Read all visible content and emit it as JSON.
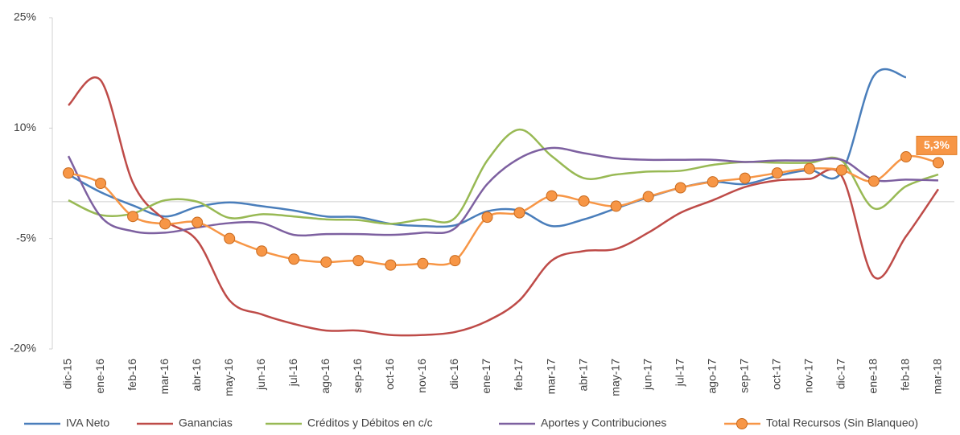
{
  "chart_data": {
    "type": "line",
    "categories": [
      "dic-15",
      "ene-16",
      "feb-16",
      "mar-16",
      "abr-16",
      "may-16",
      "jun-16",
      "jul-16",
      "ago-16",
      "sep-16",
      "oct-16",
      "nov-16",
      "dic-16",
      "ene-17",
      "feb-17",
      "mar-17",
      "abr-17",
      "may-17",
      "jun-17",
      "jul-17",
      "ago-17",
      "sep-17",
      "oct-17",
      "nov-17",
      "dic-17",
      "ene-18",
      "feb-18",
      "mar-18"
    ],
    "ylim": [
      -20,
      25
    ],
    "yticks": [
      {
        "value": -20,
        "label": "-20%"
      },
      {
        "value": -5,
        "label": "-5%"
      },
      {
        "value": 10,
        "label": "10%"
      },
      {
        "value": 25,
        "label": "25%"
      }
    ],
    "grid": false,
    "legend": "bottom",
    "series": [
      {
        "name": "IVA Neto",
        "color": "#4a7ebb",
        "values": [
          3.7,
          1.3,
          -0.5,
          -2.0,
          -0.7,
          -0.1,
          -0.6,
          -1.2,
          -2.0,
          -2.1,
          -3.0,
          -3.3,
          -3.2,
          -1.3,
          -1.2,
          -3.3,
          -2.4,
          -0.9,
          0.6,
          1.9,
          2.7,
          2.4,
          3.5,
          4.3,
          4.0,
          17.1,
          16.9,
          null
        ]
      },
      {
        "name": "Ganancias",
        "color": "#be4b48",
        "values": [
          13.1,
          16.5,
          2.6,
          -2.5,
          -5.3,
          -13.4,
          -15.3,
          -16.6,
          -17.5,
          -17.5,
          -18.1,
          -18.1,
          -17.7,
          -16.2,
          -13.4,
          -8.0,
          -6.7,
          -6.4,
          -4.2,
          -1.5,
          0.2,
          2.0,
          2.9,
          3.1,
          3.5,
          -10.2,
          -4.7,
          1.7
        ]
      },
      {
        "name": "Créditos y Débitos en c/c",
        "color": "#98b954",
        "values": [
          0.2,
          -1.8,
          -1.6,
          0.2,
          0.0,
          -2.2,
          -1.7,
          -2.0,
          -2.4,
          -2.5,
          -3.0,
          -2.4,
          -2.2,
          5.6,
          9.8,
          6.2,
          3.2,
          3.7,
          4.1,
          4.2,
          5.0,
          5.4,
          5.3,
          5.3,
          5.6,
          -0.9,
          2.1,
          3.7
        ]
      },
      {
        "name": "Aportes y Contribuciones",
        "color": "#7d60a0",
        "values": [
          6.2,
          -2.0,
          -4.0,
          -4.2,
          -3.5,
          -2.9,
          -2.9,
          -4.5,
          -4.4,
          -4.4,
          -4.5,
          -4.2,
          -3.6,
          2.4,
          5.9,
          7.3,
          6.6,
          5.9,
          5.7,
          5.7,
          5.7,
          5.4,
          5.6,
          5.6,
          5.7,
          3.0,
          3.0,
          2.9
        ]
      },
      {
        "name": "Total Recursos (Sin Blanqueo)",
        "color": "#f79646",
        "marker": "circle",
        "values": [
          3.9,
          2.5,
          -2.0,
          -3.0,
          -2.8,
          -5.0,
          -6.7,
          -7.8,
          -8.2,
          -8.0,
          -8.6,
          -8.4,
          -8.0,
          -2.1,
          -1.5,
          0.8,
          0.1,
          -0.6,
          0.7,
          1.9,
          2.7,
          3.2,
          3.9,
          4.5,
          4.3,
          2.8,
          6.1,
          5.3
        ],
        "value_labels": [
          null,
          null,
          null,
          null,
          null,
          null,
          null,
          null,
          null,
          null,
          null,
          null,
          null,
          null,
          null,
          null,
          null,
          null,
          null,
          null,
          null,
          null,
          null,
          null,
          null,
          null,
          null,
          "5,3%"
        ]
      }
    ]
  }
}
